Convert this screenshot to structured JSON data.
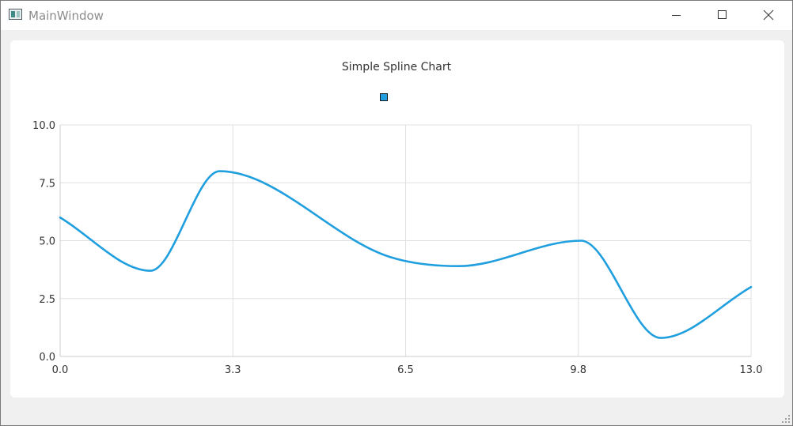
{
  "window": {
    "title": "MainWindow",
    "icon": "application-window-icon",
    "controls": [
      "minimize-icon",
      "maximize-icon",
      "close-icon"
    ]
  },
  "chart_data": {
    "type": "line",
    "smooth": true,
    "title": "Simple Spline Chart",
    "xlabel": "",
    "ylabel": "",
    "xlim": [
      0.0,
      13.0
    ],
    "ylim": [
      0.0,
      10.0
    ],
    "x_ticks": [
      "0.0",
      "3.3",
      "6.5",
      "9.8",
      "13.0"
    ],
    "y_ticks": [
      "0.0",
      "2.5",
      "5.0",
      "7.5",
      "10.0"
    ],
    "grid": true,
    "legend": "top-center",
    "series": [
      {
        "color": "#209fdf",
        "x": [
          0,
          1.7,
          3,
          6.2,
          7.5,
          9.8,
          11.3,
          13
        ],
        "y": [
          6,
          3.7,
          8,
          4.3,
          3.9,
          5,
          0.8,
          3
        ]
      }
    ]
  }
}
